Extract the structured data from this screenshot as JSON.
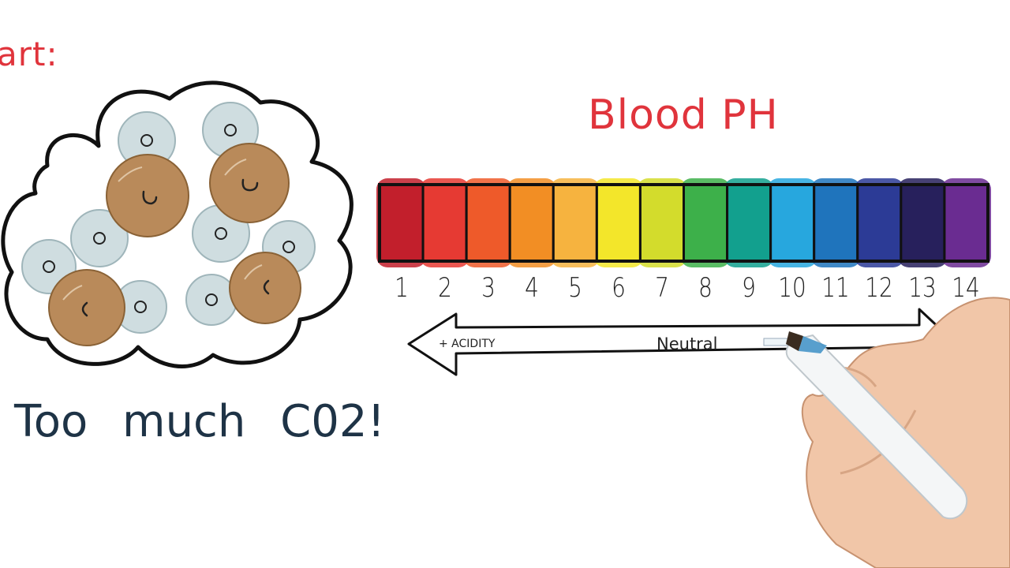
{
  "heading_fragment": "art:",
  "ph_title": "Blood  PH",
  "co2_caption": "Too  much  C02!",
  "ph_scale": {
    "numbers": [
      "1",
      "2",
      "3",
      "4",
      "5",
      "6",
      "7",
      "8",
      "9",
      "10",
      "11",
      "12",
      "13",
      "14"
    ],
    "colors": [
      "#c21f2c",
      "#e63a33",
      "#ee5a2a",
      "#f28e24",
      "#f6b33f",
      "#f3e62a",
      "#d3dc2c",
      "#3db04a",
      "#12a08e",
      "#27a7de",
      "#1f74bc",
      "#2c3b96",
      "#27205c",
      "#6a2c91"
    ],
    "acidity_label": "+ ACIDITY",
    "neutral_label": "Neutral"
  },
  "cells": {
    "blue_cell_label": "o",
    "brown_cell_label": "c"
  }
}
